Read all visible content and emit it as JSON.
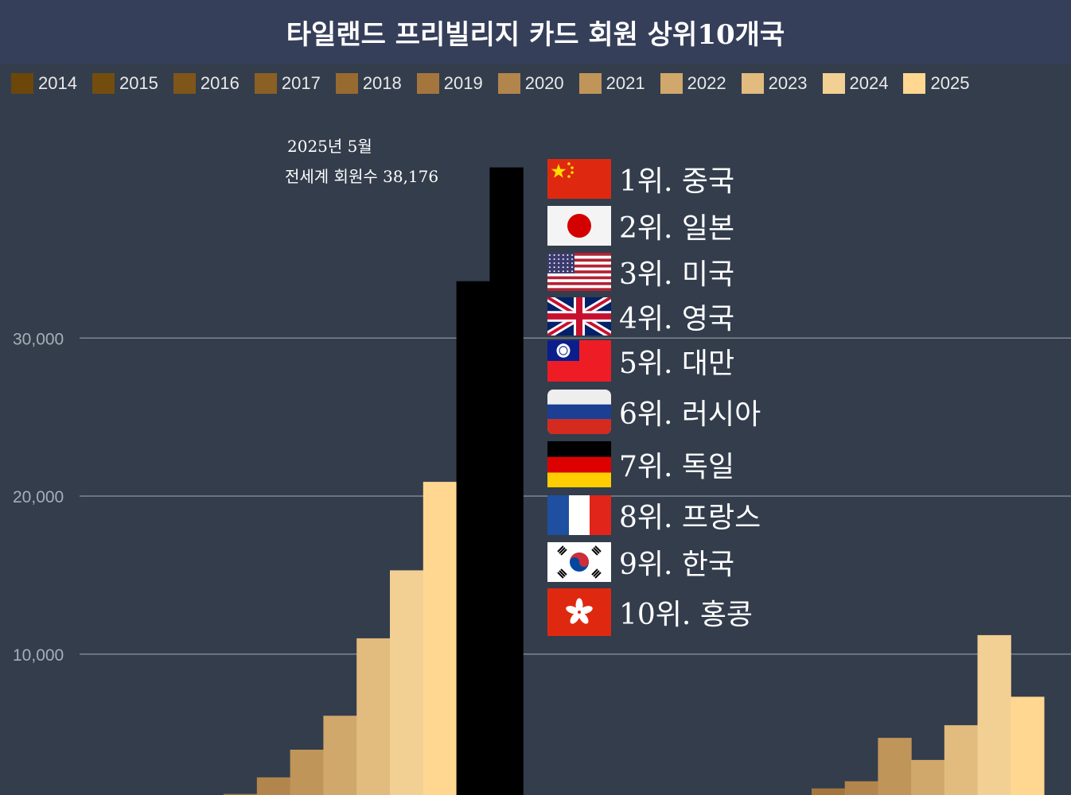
{
  "title": "타일랜드 프리빌리지 카드 회원 상위10개국",
  "colors": {
    "background": "#333d4c",
    "title_bar": "#363f5a",
    "years": [
      "#6c4709",
      "#734d0e",
      "#7f5619",
      "#8b6024",
      "#976a30",
      "#a4763d",
      "#b2854d",
      "#c09559",
      "#d0a86b",
      "#e2bb7e",
      "#f2cf92",
      "#ffd790"
    ]
  },
  "ranking": [
    {
      "label": "1위. 중국",
      "flag": "china-flag-icon"
    },
    {
      "label": "2위. 일본",
      "flag": "japan-flag-icon"
    },
    {
      "label": "3위. 미국",
      "flag": "usa-flag-icon"
    },
    {
      "label": "4위. 영국",
      "flag": "uk-flag-icon"
    },
    {
      "label": "5위. 대만",
      "flag": "taiwan-flag-icon"
    },
    {
      "label": "6위. 러시아",
      "flag": "russia-flag-icon"
    },
    {
      "label": "7위. 독일",
      "flag": "germany-flag-icon"
    },
    {
      "label": "8위. 프랑스",
      "flag": "france-flag-icon"
    },
    {
      "label": "9위. 한국",
      "flag": "korea-flag-icon"
    },
    {
      "label": "10위. 홍콩",
      "flag": "hongkong-flag-icon"
    }
  ],
  "chart_data": {
    "type": "bar",
    "title": "타일랜드 프리빌리지 카드 회원 상위10개국",
    "legend": {
      "position": "top",
      "entries": [
        "2014",
        "2015",
        "2016",
        "2017",
        "2018",
        "2019",
        "2020",
        "2021",
        "2022",
        "2023",
        "2024",
        "2025"
      ]
    },
    "y_ticks": [
      "10,000",
      "20,000",
      "30,000"
    ],
    "y_tick_values": [
      10000,
      20000,
      30000
    ],
    "ylim_visible": [
      1000,
      40000
    ],
    "grid": true,
    "annotation": [
      "2025년 5월",
      "전세계 회원수 38,176"
    ],
    "groups": [
      {
        "series_start_index": 5,
        "values": [
          1150,
          2200,
          3950,
          6100,
          11000,
          15300,
          20900,
          33600,
          40800
        ]
      },
      {
        "series_start_index": 5,
        "values": [
          1500,
          1950,
          4700,
          3300,
          5500,
          11200,
          7300
        ]
      }
    ]
  }
}
